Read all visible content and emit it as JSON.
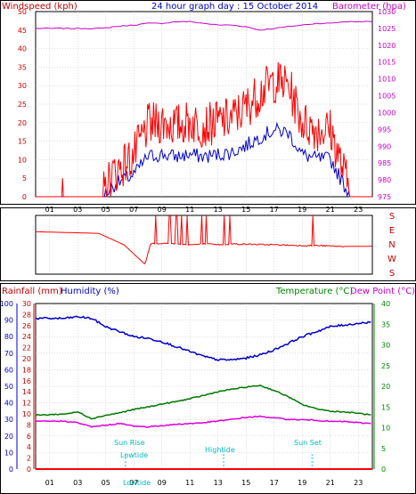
{
  "panel_top": {
    "title": "24 hour graph day : 15 October 2014",
    "left_label": "Windspeed (kph)",
    "right_label": "Barometer (hpa)",
    "left_ticks": [
      "0",
      "5",
      "10",
      "15",
      "20",
      "25",
      "30",
      "35",
      "40",
      "45",
      "50"
    ],
    "right_ticks": [
      "975",
      "980",
      "985",
      "990",
      "995",
      "1000",
      "1005",
      "1010",
      "1015",
      "1020",
      "1025",
      "1030"
    ],
    "x_ticks": [
      "01",
      "03",
      "05",
      "07",
      "09",
      "11",
      "13",
      "15",
      "17",
      "19",
      "21",
      "23"
    ]
  },
  "panel_mid": {
    "dir_labels": [
      "S",
      "E",
      "N",
      "W",
      "S"
    ]
  },
  "panel_bottom": {
    "label_rainfall": "Rainfall (mm)",
    "label_humidity": "Humidity (%)",
    "label_temperature": "Temperature (°C)",
    "label_dewpoint": "Dew Point (°C)",
    "humidity_ticks": [
      "0",
      "10",
      "20",
      "30",
      "40",
      "50",
      "60",
      "70",
      "80",
      "90",
      "100"
    ],
    "rain_ticks": [
      "0",
      "2",
      "4",
      "6",
      "8",
      "10",
      "12",
      "14",
      "16",
      "18",
      "20",
      "22",
      "24",
      "26",
      "28",
      "30"
    ],
    "temp_ticks": [
      "0",
      "5",
      "10",
      "15",
      "20",
      "25",
      "30",
      "35",
      "40"
    ],
    "x_ticks": [
      "01",
      "03",
      "05",
      "07",
      "09",
      "11",
      "13",
      "15",
      "17",
      "19",
      "21",
      "23"
    ],
    "annotations": {
      "sun_rise": "Sun Rise",
      "lowtide_1": "Lowtide",
      "lowtide_2": "Lowtide",
      "hightide": "Hightide",
      "sun_set": "Sun Set"
    }
  },
  "colors": {
    "wind": "#ff0000",
    "gust_avg": "#0000cc",
    "barometer": "#cc00cc",
    "humidity": "#0000cc",
    "temperature": "#007700",
    "dewpoint": "#dd00dd",
    "rain": "#ff0000",
    "annotation": "#00cccc",
    "grid": "#bbbbbb",
    "axis_left_top": "#cc0000",
    "axis_right_top": "#cc00cc",
    "axis_temp": "#008800"
  },
  "chart_data": [
    {
      "type": "line",
      "title": "24 hour graph day : 15 October 2014",
      "x_label": "hour",
      "x": [
        0,
        4.8,
        5.5,
        7,
        8,
        9,
        10,
        11,
        12,
        13,
        14,
        15,
        16,
        17,
        18,
        19,
        20,
        21,
        22,
        22.5,
        24
      ],
      "xlim": [
        0,
        24
      ],
      "ylim": [
        0,
        50
      ],
      "y2lim": [
        975,
        1030
      ],
      "series": [
        {
          "name": "Windspeed (kph)",
          "axis": "left",
          "values": [
            0,
            0,
            5,
            10,
            18,
            19,
            18,
            19,
            18,
            19,
            20,
            23,
            27,
            30,
            29,
            19,
            17,
            17,
            5,
            0,
            0
          ]
        },
        {
          "name": "Barometer (hpa)",
          "axis": "right",
          "values": [
            1025,
            1025,
            1025.5,
            1026,
            1026.5,
            1026.5,
            1027,
            1027,
            1026.5,
            1026,
            1026,
            1025.5,
            1024.5,
            1025,
            1025.5,
            1026,
            1026.5,
            1026.5,
            1027,
            1027,
            1027
          ]
        }
      ]
    },
    {
      "type": "line",
      "title": "",
      "categories": [
        "S",
        "E",
        "N",
        "W",
        "S"
      ],
      "x": [
        0,
        4.5,
        6.3,
        7.8,
        8.2,
        10,
        11,
        12,
        13,
        14,
        17,
        19,
        20,
        22,
        24
      ],
      "values": [
        260,
        250,
        180,
        60,
        190,
        185,
        180,
        185,
        180,
        185,
        180,
        175,
        175,
        170,
        170
      ]
    },
    {
      "type": "line",
      "title": "",
      "x": [
        0,
        2,
        3,
        4,
        5,
        6,
        7,
        8,
        9,
        10,
        11,
        12,
        13,
        14,
        15,
        16,
        17,
        18,
        19,
        20,
        21,
        22,
        23,
        24
      ],
      "series": [
        {
          "name": "Humidity (%)",
          "axis": "left",
          "values": [
            91,
            91,
            92,
            91,
            86,
            83,
            80,
            79,
            77,
            74,
            71,
            68,
            66,
            66,
            67,
            69,
            72,
            76,
            80,
            83,
            86,
            87,
            88,
            89
          ]
        },
        {
          "name": "Temperature (°C)",
          "axis": "right",
          "values": [
            13,
            13.3,
            13.8,
            12.2,
            13,
            13.6,
            14.4,
            15,
            15.7,
            16.3,
            17,
            17.8,
            18.7,
            19.3,
            19.8,
            20.2,
            19,
            17.5,
            15.6,
            14.6,
            14,
            13.8,
            13.5,
            13
          ]
        },
        {
          "name": "Dew Point (°C)",
          "axis": "right",
          "values": [
            11.5,
            11.6,
            11.2,
            10.2,
            10.6,
            11,
            10.4,
            10.2,
            10.5,
            10.8,
            11,
            11.2,
            11.6,
            12,
            12.5,
            12.7,
            12.4,
            12,
            11.9,
            11.8,
            11.5,
            11.5,
            11.2,
            11
          ]
        },
        {
          "name": "Rainfall (mm)",
          "axis": "left",
          "values": [
            0,
            0,
            0,
            0,
            0,
            0,
            0,
            0,
            0,
            0,
            0,
            0,
            0,
            0,
            0,
            0,
            0,
            0,
            0,
            0,
            0,
            0,
            0,
            0
          ]
        }
      ],
      "ylim": [
        0,
        100
      ],
      "y2lim": [
        0,
        40
      ]
    }
  ]
}
